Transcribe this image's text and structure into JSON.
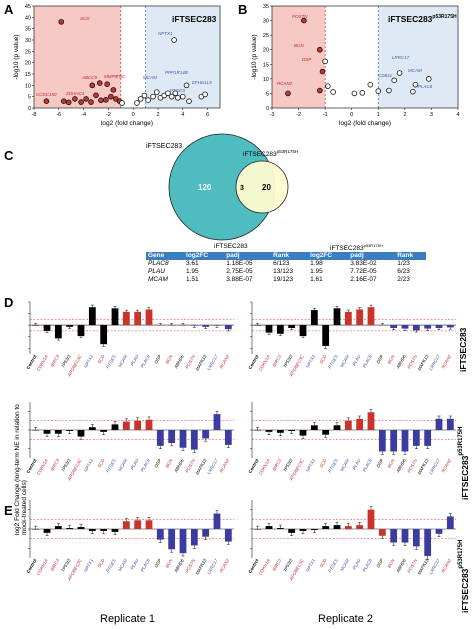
{
  "panels": {
    "A": "A",
    "B": "B",
    "C": "C",
    "D": "D",
    "E": "E"
  },
  "panelA": {
    "title": "iFTSEC283",
    "ylabel": "-log10 (p value)",
    "xlabel": "log2 (fold change)",
    "xticks": [
      "-8",
      "-6",
      "-4",
      "-2",
      "0",
      "2",
      "4",
      "6"
    ],
    "yticks": [
      "0",
      "5",
      "10",
      "15",
      "20",
      "25",
      "30",
      "35",
      "40",
      "45"
    ],
    "labels_red": [
      "SCD",
      "ABCC9",
      "MMP9",
      "TNC",
      "CCDC150",
      "ZDHHC4"
    ],
    "labels_blue": [
      "NPTX1",
      "MCAM",
      "PPP1R14B",
      "EFHD1L5",
      "PTGES"
    ]
  },
  "panelB": {
    "title": "iFTSEC283",
    "title_sup": "p53R175H",
    "ylabel": "-log10 (p value)",
    "xlabel": "log2 (fold change)",
    "xticks": [
      "-3",
      "-2",
      "-1",
      "0",
      "1",
      "2",
      "3",
      "4"
    ],
    "yticks": [
      "0",
      "5",
      "10",
      "15",
      "20",
      "25",
      "30",
      "35"
    ],
    "labels_red": [
      "POSTN",
      "BGN",
      "DSP",
      "RCAN2"
    ],
    "labels_blue": [
      "LRRC17",
      "CDB11",
      "MCAM",
      "PLAC8"
    ]
  },
  "panelC": {
    "label_left": "iFTSEC283",
    "label_right": "iFTSEC283",
    "label_right_sup": "p53R175H",
    "n_left": "120",
    "n_overlap": "3",
    "n_right": "20",
    "group1": "iFTSEC283",
    "group2": "iFTSEC283",
    "group2_sup": "p53R175H",
    "headers": [
      "Gene",
      "log2FC",
      "padj",
      "Rank",
      "log2FC",
      "padj",
      "Rank"
    ],
    "rows": [
      [
        "PLAC8",
        "3.61",
        "1.18E-05",
        "6/123",
        "1.98",
        "3.83E-02",
        "1/23"
      ],
      [
        "PLAU",
        "1.95",
        "2.75E-05",
        "13/123",
        "1.95",
        "7.72E-05",
        "6/23"
      ],
      [
        "MCAM",
        "1.51",
        "3.88E-07",
        "19/123",
        "1.61",
        "2.16E-07",
        "2/23"
      ]
    ]
  },
  "side_labels": {
    "row1": "iFTSEC283",
    "row2": "iFTSEC283",
    "row2_sup": "p53R175H",
    "row3": "iFTSEC283",
    "row3_sup": "p53R175H"
  },
  "ylabel_D": "log2 Fold Change (long-term NE in relation to mock-treated cells)",
  "replicate1": "Replicate 1",
  "replicate2": "Replicate 2",
  "genes": [
    "Control",
    "CDKN1A",
    "BIRC3",
    "TP53I3",
    "APOBEC3C",
    "NPTX1",
    "SCD",
    "PTGES",
    "MCAM",
    "PLAU",
    "PLAC8",
    "DSP",
    "BGN",
    "ABHD6",
    "POSTN",
    "MAPK13",
    "LRRC17",
    "RCAN2"
  ],
  "gene_colors": [
    "#000000",
    "#c0282d",
    "#c0282d",
    "#000000",
    "#c0282d",
    "#3b4ba8",
    "#c0282d",
    "#3b4ba8",
    "#3b4ba8",
    "#3b4ba8",
    "#3b4ba8",
    "#000000",
    "#c0282d",
    "#000000",
    "#c0282d",
    "#000000",
    "#3b4ba8",
    "#c0282d"
  ],
  "colors": {
    "black": "#000000",
    "red": "#c8332c",
    "blue": "#3b3ba0",
    "redbg": "#f6c9c4",
    "bluebg": "#dfe9f5",
    "teal": "#4fbcbf",
    "yellow": "#fdfbcf"
  },
  "chart_data": [
    {
      "type": "bar",
      "panel": "D",
      "row": 1,
      "replicate": 1,
      "categories": [
        "Control",
        "CDKN1A",
        "BIRC3",
        "TP53I3",
        "APOBEC3C",
        "NPTX1",
        "SCD",
        "PTGES",
        "MCAM",
        "PLAU",
        "PLAC8",
        "DSP",
        "BGN",
        "ABHD6",
        "POSTN",
        "MAPK13",
        "LRRC17",
        "RCAN2"
      ],
      "values": [
        0,
        -1.0,
        -2.3,
        -0.3,
        -1.9,
        3.1,
        -3.3,
        2.9,
        2.3,
        2.3,
        2.7,
        0,
        0,
        0,
        -0.1,
        -0.3,
        -0.1,
        -0.7
      ],
      "colors": [
        "k",
        "k",
        "k",
        "k",
        "k",
        "k",
        "k",
        "k",
        "r",
        "r",
        "r",
        "r",
        "b",
        "b",
        "b",
        "b",
        "b",
        "b"
      ],
      "ylim": [
        -5,
        4
      ]
    },
    {
      "type": "bar",
      "panel": "D",
      "row": 1,
      "replicate": 2,
      "categories": [
        "Control",
        "CDKN1A",
        "BIRC3",
        "TP53I3",
        "APOBEC3C",
        "NPTX1",
        "SCD",
        "PTGES",
        "MCAM",
        "PLAU",
        "PLAC8",
        "DSP",
        "BGN",
        "ABHD6",
        "POSTN",
        "MAPK13",
        "LRRC17",
        "RCAN2"
      ],
      "values": [
        0,
        -1.3,
        -1.5,
        -0.5,
        -1.9,
        2.6,
        -3.6,
        2.9,
        2.3,
        2.7,
        3.1,
        0,
        -0.5,
        -0.6,
        -0.9,
        -0.6,
        -0.5,
        -0.4
      ],
      "colors": [
        "k",
        "k",
        "k",
        "k",
        "k",
        "k",
        "k",
        "k",
        "r",
        "r",
        "r",
        "r",
        "b",
        "b",
        "b",
        "b",
        "b",
        "b"
      ],
      "ylim": [
        -5,
        4
      ]
    },
    {
      "type": "bar",
      "panel": "D",
      "row": 2,
      "replicate": 1,
      "categories": [
        "Control",
        "CDKN1A",
        "BIRC3",
        "TP53I3",
        "APOBEC3C",
        "NPTX1",
        "SCD",
        "PTGES",
        "MCAM",
        "PLAU",
        "PLAC8",
        "DSP",
        "BGN",
        "ABHD6",
        "POSTN",
        "MAPK13",
        "LRRC17",
        "RCAN2"
      ],
      "values": [
        0,
        -0.4,
        -0.4,
        -0.1,
        -0.7,
        0.3,
        -0.2,
        0.6,
        0.9,
        1.0,
        1.1,
        -1.7,
        -1.4,
        -1.9,
        -2.1,
        -0.9,
        1.7,
        -1.6
      ],
      "colors": [
        "k",
        "k",
        "k",
        "k",
        "k",
        "k",
        "k",
        "k",
        "r",
        "r",
        "r",
        "b",
        "b",
        "b",
        "b",
        "b",
        "b",
        "b"
      ],
      "ylim": [
        -3,
        3
      ]
    },
    {
      "type": "bar",
      "panel": "D",
      "row": 2,
      "replicate": 2,
      "categories": [
        "Control",
        "CDKN1A",
        "BIRC3",
        "TP53I3",
        "APOBEC3C",
        "NPTX1",
        "SCD",
        "PTGES",
        "MCAM",
        "PLAU",
        "PLAC8",
        "DSP",
        "BGN",
        "ABHD6",
        "POSTN",
        "MAPK13",
        "LRRC17",
        "RCAN2"
      ],
      "values": [
        0,
        -0.2,
        -0.3,
        -0.1,
        -0.6,
        0.5,
        -0.5,
        0.5,
        1.0,
        1.2,
        1.9,
        -2.3,
        -2.3,
        -2.3,
        -1.7,
        -1.7,
        1.2,
        1.2
      ],
      "colors": [
        "k",
        "k",
        "k",
        "k",
        "k",
        "k",
        "k",
        "k",
        "r",
        "r",
        "r",
        "b",
        "b",
        "b",
        "b",
        "b",
        "b",
        "b"
      ],
      "ylim": [
        -3,
        3
      ]
    },
    {
      "type": "bar",
      "panel": "E",
      "row": 3,
      "replicate": 1,
      "categories": [
        "Control",
        "CDKN1A",
        "BIRC3",
        "TP53I3",
        "APOBEC3C",
        "NPTX1",
        "SCD",
        "PTGES",
        "MCAM",
        "PLAU",
        "PLAC8",
        "DSP",
        "BGN",
        "ABHD6",
        "POSTN",
        "MAPK13",
        "LRRC17",
        "RCAN2"
      ],
      "values": [
        0,
        -0.4,
        0.3,
        0.1,
        0.2,
        -0.2,
        -0.2,
        -0.3,
        0.8,
        0.9,
        0.9,
        -1.1,
        -2.1,
        -2.5,
        -1.7,
        -0.8,
        1.6,
        -1.3
      ],
      "colors": [
        "k",
        "k",
        "k",
        "k",
        "k",
        "k",
        "k",
        "k",
        "r",
        "r",
        "r",
        "b",
        "b",
        "b",
        "b",
        "b",
        "b",
        "b"
      ],
      "ylim": [
        -3,
        3
      ]
    },
    {
      "type": "bar",
      "panel": "E",
      "row": 3,
      "replicate": 2,
      "categories": [
        "Control",
        "CDKN1A",
        "BIRC3",
        "TP53I3",
        "APOBEC3C",
        "NPTX1",
        "SCD",
        "PTGES",
        "MCAM",
        "PLAU",
        "PLAC8",
        "DSP",
        "BGN",
        "ABHD6",
        "POSTN",
        "MAPK13",
        "LRRC17",
        "RCAN2"
      ],
      "values": [
        0,
        0.3,
        0.1,
        -0.4,
        -0.2,
        -0.1,
        0.3,
        0.4,
        0.3,
        0.4,
        2.0,
        -0.7,
        -1.4,
        -1.4,
        -1.8,
        -2.8,
        -0.5,
        1.3
      ],
      "colors": [
        "k",
        "k",
        "k",
        "k",
        "k",
        "k",
        "k",
        "k",
        "r",
        "r",
        "r",
        "r",
        "b",
        "b",
        "b",
        "b",
        "b",
        "b"
      ],
      "ylim": [
        -3,
        3
      ]
    },
    {
      "type": "scatter",
      "panel": "A",
      "points": [
        [
          -5.8,
          38
        ],
        [
          -3.3,
          10
        ],
        [
          -2.7,
          11
        ],
        [
          -2.1,
          10.5
        ],
        [
          -1.6,
          8
        ],
        [
          -7.0,
          3
        ],
        [
          -5.6,
          3
        ],
        [
          -5.2,
          2.5
        ],
        [
          -4.7,
          4
        ],
        [
          -4.2,
          2.6
        ],
        [
          -3.8,
          4
        ],
        [
          -3.4,
          2.6
        ],
        [
          -3.0,
          5.6
        ],
        [
          -2.6,
          3.4
        ],
        [
          -2.2,
          3.6
        ],
        [
          -1.8,
          5
        ],
        [
          -1.4,
          4
        ],
        [
          -1.1,
          3
        ],
        [
          -0.9,
          2.2
        ],
        [
          0.3,
          2.2
        ],
        [
          0.6,
          4
        ],
        [
          0.9,
          5.5
        ],
        [
          1.2,
          3.5
        ],
        [
          1.6,
          5
        ],
        [
          1.9,
          7
        ],
        [
          2.2,
          4.5
        ],
        [
          2.5,
          5.5
        ],
        [
          2.8,
          6.5
        ],
        [
          3.1,
          5
        ],
        [
          3.4,
          6.5
        ],
        [
          3.6,
          4.5
        ],
        [
          4.0,
          5
        ],
        [
          4.5,
          3
        ],
        [
          4.3,
          10
        ],
        [
          5.5,
          5
        ],
        [
          5.8,
          6
        ],
        [
          3.3,
          30
        ]
      ],
      "xlim": [
        -8,
        7
      ],
      "ylim": [
        0,
        45
      ]
    },
    {
      "type": "scatter",
      "panel": "B",
      "points": [
        [
          -1.8,
          30
        ],
        [
          -1.2,
          20
        ],
        [
          -1.0,
          16
        ],
        [
          -1.1,
          12.5
        ],
        [
          -2.4,
          5
        ],
        [
          -1.2,
          6
        ],
        [
          -0.9,
          7.5
        ],
        [
          -0.7,
          5.5
        ],
        [
          0.1,
          5
        ],
        [
          0.4,
          5.2
        ],
        [
          0.7,
          8
        ],
        [
          1.0,
          5.8
        ],
        [
          1.4,
          6
        ],
        [
          1.6,
          9.5
        ],
        [
          1.8,
          12
        ],
        [
          2.4,
          8
        ],
        [
          2.3,
          5.6
        ],
        [
          2.9,
          10
        ]
      ],
      "xlim": [
        -3,
        4
      ],
      "ylim": [
        0,
        35
      ]
    }
  ]
}
